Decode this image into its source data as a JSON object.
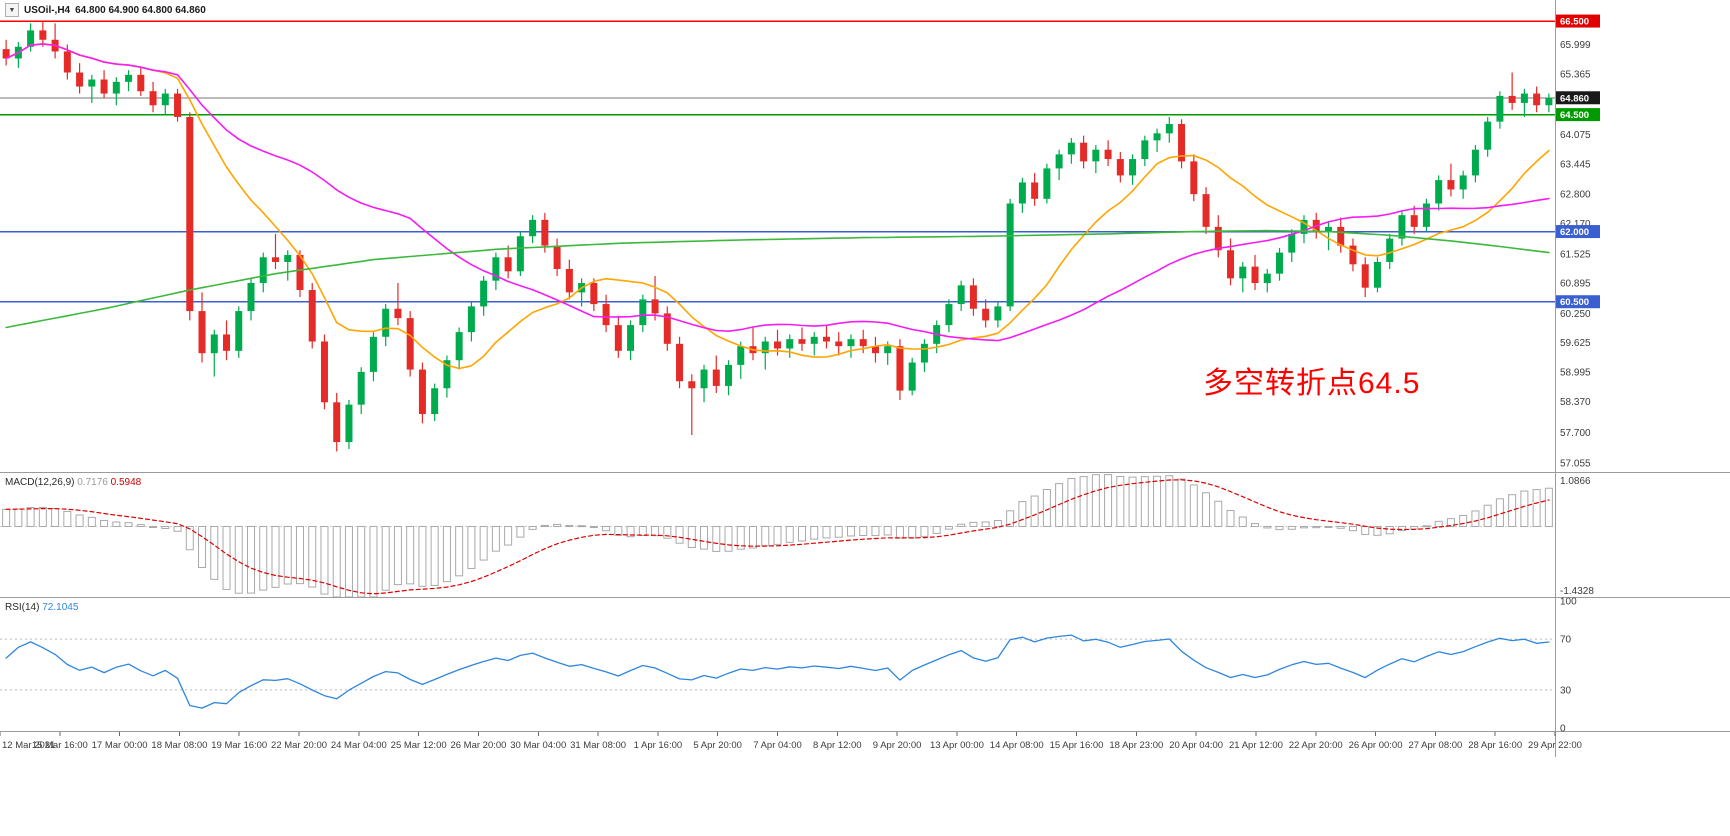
{
  "window": {
    "collapse_icon": "▼",
    "symbol": "USOil-,H4",
    "ohlc": "64.800 64.900 64.800 64.860"
  },
  "annotation": {
    "text": "多空转折点64.5",
    "color": "#fe0000"
  },
  "indicators": {
    "macd": {
      "label": "MACD(12,26,9)",
      "value_main": "0.7176",
      "value_signal": "0.5948",
      "axis_max": "1.0866",
      "axis_min": "-1.4328"
    },
    "rsi": {
      "label": "RSI(14)",
      "value": "72.1045"
    }
  },
  "price_axis": {
    "labels": [
      {
        "text": "65.999",
        "price": 65.999
      },
      {
        "text": "65.365",
        "price": 65.365
      },
      {
        "text": "64.075",
        "price": 64.075
      },
      {
        "text": "63.445",
        "price": 63.445
      },
      {
        "text": "62.800",
        "price": 62.8
      },
      {
        "text": "62.170",
        "price": 62.17
      },
      {
        "text": "61.525",
        "price": 61.525
      },
      {
        "text": "60.895",
        "price": 60.895
      },
      {
        "text": "60.250",
        "price": 60.25
      },
      {
        "text": "59.625",
        "price": 59.625
      },
      {
        "text": "58.995",
        "price": 58.995
      },
      {
        "text": "58.370",
        "price": 58.37
      },
      {
        "text": "57.700",
        "price": 57.7
      },
      {
        "text": "57.055",
        "price": 57.055
      }
    ],
    "badges": [
      {
        "text": "66.500",
        "price": 66.5,
        "bg": "#e00000"
      },
      {
        "text": "64.860",
        "price": 64.86,
        "bg": "#1a1a1a"
      },
      {
        "text": "64.500",
        "price": 64.5,
        "bg": "#009b00"
      },
      {
        "text": "62.000",
        "price": 62.0,
        "bg": "#3a5fd0"
      },
      {
        "text": "60.500",
        "price": 60.5,
        "bg": "#3a5fd0"
      }
    ]
  },
  "rsi_axis": {
    "labels": [
      {
        "text": "100",
        "value": 100
      },
      {
        "text": "70",
        "value": 70
      },
      {
        "text": "30",
        "value": 30
      },
      {
        "text": "0",
        "value": 0
      }
    ],
    "levels": [
      70,
      30
    ]
  },
  "time_axis": {
    "labels": [
      "12 Mar 2021",
      "15 Mar 16:00",
      "17 Mar 00:00",
      "18 Mar 08:00",
      "19 Mar 16:00",
      "22 Mar 20:00",
      "24 Mar 04:00",
      "25 Mar 12:00",
      "26 Mar 20:00",
      "30 Mar 04:00",
      "31 Mar 08:00",
      "1 Apr 16:00",
      "5 Apr 20:00",
      "7 Apr 04:00",
      "8 Apr 12:00",
      "9 Apr 20:00",
      "13 Apr 00:00",
      "14 Apr 08:00",
      "15 Apr 16:00",
      "18 Apr 23:00",
      "20 Apr 04:00",
      "21 Apr 12:00",
      "22 Apr 20:00",
      "26 Apr 00:00",
      "27 Apr 08:00",
      "28 Apr 16:00",
      "29 Apr 22:00"
    ]
  },
  "chart_data": {
    "type": "candlestick",
    "symbol": "USOil-",
    "timeframe": "H4",
    "title": "USOil-,H4 64.800 64.900 64.800 64.860",
    "ylim": [
      56.86,
      66.95
    ],
    "colors": {
      "up": "#00ab4e",
      "down": "#e52b28"
    },
    "candles": [
      [
        65.9,
        66.1,
        65.55,
        65.7
      ],
      [
        65.7,
        66.05,
        65.5,
        65.95
      ],
      [
        65.95,
        66.45,
        65.85,
        66.3
      ],
      [
        66.3,
        66.5,
        65.95,
        66.1
      ],
      [
        66.1,
        66.45,
        65.7,
        65.85
      ],
      [
        65.85,
        66.0,
        65.25,
        65.4
      ],
      [
        65.4,
        65.6,
        64.95,
        65.1
      ],
      [
        65.1,
        65.35,
        64.75,
        65.25
      ],
      [
        65.25,
        65.45,
        64.85,
        64.95
      ],
      [
        64.95,
        65.3,
        64.7,
        65.2
      ],
      [
        65.2,
        65.45,
        65.0,
        65.35
      ],
      [
        65.35,
        65.5,
        64.9,
        65.0
      ],
      [
        65.0,
        65.2,
        64.55,
        64.7
      ],
      [
        64.7,
        65.05,
        64.5,
        64.95
      ],
      [
        64.95,
        65.05,
        64.35,
        64.45
      ],
      [
        64.45,
        64.55,
        60.1,
        60.3
      ],
      [
        60.3,
        60.7,
        59.2,
        59.4
      ],
      [
        59.4,
        59.9,
        58.9,
        59.8
      ],
      [
        59.8,
        60.1,
        59.25,
        59.45
      ],
      [
        59.45,
        60.4,
        59.3,
        60.3
      ],
      [
        60.3,
        61.0,
        60.1,
        60.9
      ],
      [
        60.9,
        61.55,
        60.7,
        61.45
      ],
      [
        61.45,
        61.95,
        61.2,
        61.35
      ],
      [
        61.35,
        61.6,
        60.95,
        61.5
      ],
      [
        61.5,
        61.6,
        60.6,
        60.75
      ],
      [
        60.75,
        60.9,
        59.5,
        59.65
      ],
      [
        59.65,
        59.8,
        58.2,
        58.35
      ],
      [
        58.35,
        58.55,
        57.3,
        57.5
      ],
      [
        57.5,
        58.4,
        57.35,
        58.3
      ],
      [
        58.3,
        59.1,
        58.1,
        59.0
      ],
      [
        59.0,
        59.85,
        58.8,
        59.75
      ],
      [
        59.75,
        60.45,
        59.55,
        60.35
      ],
      [
        60.35,
        60.9,
        60.0,
        60.15
      ],
      [
        60.15,
        60.3,
        58.9,
        59.05
      ],
      [
        59.05,
        59.2,
        57.9,
        58.1
      ],
      [
        58.1,
        58.75,
        57.95,
        58.65
      ],
      [
        58.65,
        59.35,
        58.45,
        59.25
      ],
      [
        59.25,
        59.95,
        59.05,
        59.85
      ],
      [
        59.85,
        60.5,
        59.65,
        60.4
      ],
      [
        60.4,
        61.05,
        60.2,
        60.95
      ],
      [
        60.95,
        61.55,
        60.75,
        61.45
      ],
      [
        61.45,
        61.7,
        61.0,
        61.15
      ],
      [
        61.15,
        62.0,
        61.05,
        61.9
      ],
      [
        61.9,
        62.35,
        61.75,
        62.25
      ],
      [
        62.25,
        62.4,
        61.55,
        61.7
      ],
      [
        61.7,
        61.85,
        61.05,
        61.2
      ],
      [
        61.2,
        61.4,
        60.55,
        60.7
      ],
      [
        60.7,
        61.0,
        60.4,
        60.9
      ],
      [
        60.9,
        61.0,
        60.3,
        60.45
      ],
      [
        60.45,
        60.65,
        59.85,
        60.0
      ],
      [
        60.0,
        60.2,
        59.3,
        59.45
      ],
      [
        59.45,
        60.1,
        59.25,
        60.0
      ],
      [
        60.0,
        60.65,
        59.85,
        60.55
      ],
      [
        60.55,
        61.05,
        60.1,
        60.25
      ],
      [
        60.25,
        60.4,
        59.45,
        59.6
      ],
      [
        59.6,
        59.75,
        58.65,
        58.8
      ],
      [
        58.8,
        58.95,
        57.65,
        58.65
      ],
      [
        58.65,
        59.15,
        58.35,
        59.05
      ],
      [
        59.05,
        59.35,
        58.55,
        58.7
      ],
      [
        58.7,
        59.25,
        58.5,
        59.15
      ],
      [
        59.15,
        59.65,
        58.85,
        59.55
      ],
      [
        59.55,
        59.95,
        59.25,
        59.4
      ],
      [
        59.4,
        59.75,
        59.05,
        59.65
      ],
      [
        59.65,
        59.9,
        59.35,
        59.5
      ],
      [
        59.5,
        59.8,
        59.3,
        59.7
      ],
      [
        59.7,
        59.95,
        59.45,
        59.6
      ],
      [
        59.6,
        59.85,
        59.35,
        59.75
      ],
      [
        59.75,
        60.0,
        59.5,
        59.65
      ],
      [
        59.65,
        59.85,
        59.35,
        59.55
      ],
      [
        59.55,
        59.8,
        59.3,
        59.7
      ],
      [
        59.7,
        59.9,
        59.4,
        59.55
      ],
      [
        59.55,
        59.75,
        59.2,
        59.4
      ],
      [
        59.4,
        59.65,
        59.15,
        59.55
      ],
      [
        59.55,
        59.7,
        58.4,
        58.6
      ],
      [
        58.6,
        59.3,
        58.5,
        59.2
      ],
      [
        59.2,
        59.7,
        59.0,
        59.6
      ],
      [
        59.6,
        60.1,
        59.4,
        60.0
      ],
      [
        60.0,
        60.55,
        59.85,
        60.45
      ],
      [
        60.45,
        60.95,
        60.3,
        60.85
      ],
      [
        60.85,
        61.0,
        60.2,
        60.35
      ],
      [
        60.35,
        60.55,
        59.95,
        60.1
      ],
      [
        60.1,
        60.5,
        59.95,
        60.4
      ],
      [
        60.4,
        62.7,
        60.3,
        62.6
      ],
      [
        62.6,
        63.15,
        62.4,
        63.05
      ],
      [
        63.05,
        63.25,
        62.55,
        62.7
      ],
      [
        62.7,
        63.45,
        62.6,
        63.35
      ],
      [
        63.35,
        63.75,
        63.1,
        63.65
      ],
      [
        63.65,
        64.0,
        63.45,
        63.9
      ],
      [
        63.9,
        64.05,
        63.35,
        63.5
      ],
      [
        63.5,
        63.85,
        63.25,
        63.75
      ],
      [
        63.75,
        63.95,
        63.4,
        63.55
      ],
      [
        63.55,
        63.7,
        63.05,
        63.2
      ],
      [
        63.2,
        63.65,
        63.0,
        63.55
      ],
      [
        63.55,
        64.05,
        63.4,
        63.95
      ],
      [
        63.95,
        64.2,
        63.7,
        64.1
      ],
      [
        64.1,
        64.45,
        63.9,
        64.3
      ],
      [
        64.3,
        64.4,
        63.35,
        63.5
      ],
      [
        63.5,
        63.65,
        62.65,
        62.8
      ],
      [
        62.8,
        62.95,
        61.95,
        62.1
      ],
      [
        62.1,
        62.35,
        61.45,
        61.6
      ],
      [
        61.6,
        61.85,
        60.85,
        61.0
      ],
      [
        61.0,
        61.35,
        60.7,
        61.25
      ],
      [
        61.25,
        61.5,
        60.75,
        60.9
      ],
      [
        60.9,
        61.2,
        60.7,
        61.1
      ],
      [
        61.1,
        61.65,
        60.95,
        61.55
      ],
      [
        61.55,
        62.05,
        61.35,
        61.95
      ],
      [
        61.95,
        62.35,
        61.75,
        62.25
      ],
      [
        62.25,
        62.4,
        61.85,
        62.0
      ],
      [
        62.0,
        62.2,
        61.6,
        62.1
      ],
      [
        62.1,
        62.3,
        61.55,
        61.7
      ],
      [
        61.7,
        61.85,
        61.15,
        61.3
      ],
      [
        61.3,
        61.45,
        60.6,
        60.8
      ],
      [
        60.8,
        61.45,
        60.7,
        61.35
      ],
      [
        61.35,
        61.95,
        61.2,
        61.85
      ],
      [
        61.85,
        62.45,
        61.7,
        62.35
      ],
      [
        62.35,
        62.55,
        61.95,
        62.1
      ],
      [
        62.1,
        62.7,
        62.0,
        62.6
      ],
      [
        62.6,
        63.2,
        62.45,
        63.1
      ],
      [
        63.1,
        63.45,
        62.75,
        62.9
      ],
      [
        62.9,
        63.3,
        62.7,
        63.2
      ],
      [
        63.2,
        63.85,
        63.05,
        63.75
      ],
      [
        63.75,
        64.45,
        63.6,
        64.35
      ],
      [
        64.35,
        65.0,
        64.2,
        64.9
      ],
      [
        64.9,
        65.4,
        64.6,
        64.75
      ],
      [
        64.75,
        65.05,
        64.45,
        64.95
      ],
      [
        64.95,
        65.1,
        64.55,
        64.7
      ],
      [
        64.7,
        64.95,
        64.55,
        64.86
      ]
    ],
    "hlines": [
      {
        "price": 66.5,
        "color": "#ff0000",
        "width": 1.5
      },
      {
        "price": 64.86,
        "color": "#777777",
        "width": 1
      },
      {
        "price": 64.5,
        "color": "#009b00",
        "width": 1.6
      },
      {
        "price": 62.0,
        "color": "#3a5fd0",
        "width": 1.6
      },
      {
        "price": 60.5,
        "color": "#3a5fd0",
        "width": 1.6
      }
    ],
    "moving_averages": [
      {
        "name": "sma-fast",
        "period": 13,
        "color": "#ffa500",
        "width": 1.6
      },
      {
        "name": "sma-mid",
        "period": 34,
        "color": "#f41df4",
        "width": 1.6
      },
      {
        "name": "sma-slow",
        "color": "#3cb83c",
        "width": 1.6,
        "points": [
          [
            0,
            59.95
          ],
          [
            8,
            60.35
          ],
          [
            15,
            60.75
          ],
          [
            22,
            61.1
          ],
          [
            30,
            61.4
          ],
          [
            40,
            61.62
          ],
          [
            50,
            61.75
          ],
          [
            60,
            61.82
          ],
          [
            70,
            61.87
          ],
          [
            80,
            61.9
          ],
          [
            90,
            61.95
          ],
          [
            97,
            62.0
          ],
          [
            103,
            62.02
          ],
          [
            108,
            62.0
          ],
          [
            113,
            61.92
          ],
          [
            118,
            61.8
          ],
          [
            122,
            61.68
          ],
          [
            126,
            61.55
          ]
        ]
      }
    ],
    "macd": {
      "fast": 12,
      "slow": 26,
      "signal": 9,
      "ylim": [
        -1.4328,
        1.0866
      ],
      "hist_color": "#a9a9a9",
      "signal_color": "#dd0000",
      "current_main": 0.7176,
      "current_signal": 0.5948
    },
    "rsi": {
      "period": 14,
      "ylim": [
        0,
        100
      ],
      "color": "#2e86de",
      "current": 72.1045,
      "levels": [
        70,
        30
      ]
    }
  }
}
